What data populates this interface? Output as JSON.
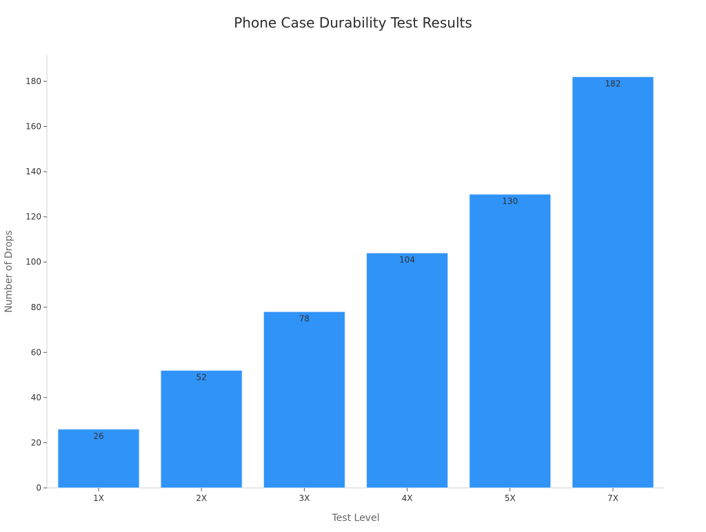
{
  "chart_data": {
    "type": "bar",
    "title": "Phone Case Durability Test Results",
    "xlabel": "Test Level",
    "ylabel": "Number of Drops",
    "categories": [
      "1X",
      "2X",
      "3X",
      "4X",
      "5X",
      "7X"
    ],
    "values": [
      26,
      52,
      78,
      104,
      130,
      182
    ],
    "value_labels": [
      "26",
      "52",
      "78",
      "104",
      "130",
      "182"
    ],
    "y_ticks": [
      0,
      20,
      40,
      60,
      80,
      100,
      120,
      140,
      160,
      180
    ],
    "y_tick_labels": [
      "0",
      "20",
      "40",
      "60",
      "80",
      "100",
      "120",
      "140",
      "160",
      "180"
    ],
    "ylim": [
      0,
      191
    ],
    "grid": false,
    "legend": "none",
    "colors": {
      "bar": "#2f93f8",
      "bar_edge": "#d9e9ff",
      "text": "#333333",
      "axis": "#d0d0d0"
    }
  }
}
